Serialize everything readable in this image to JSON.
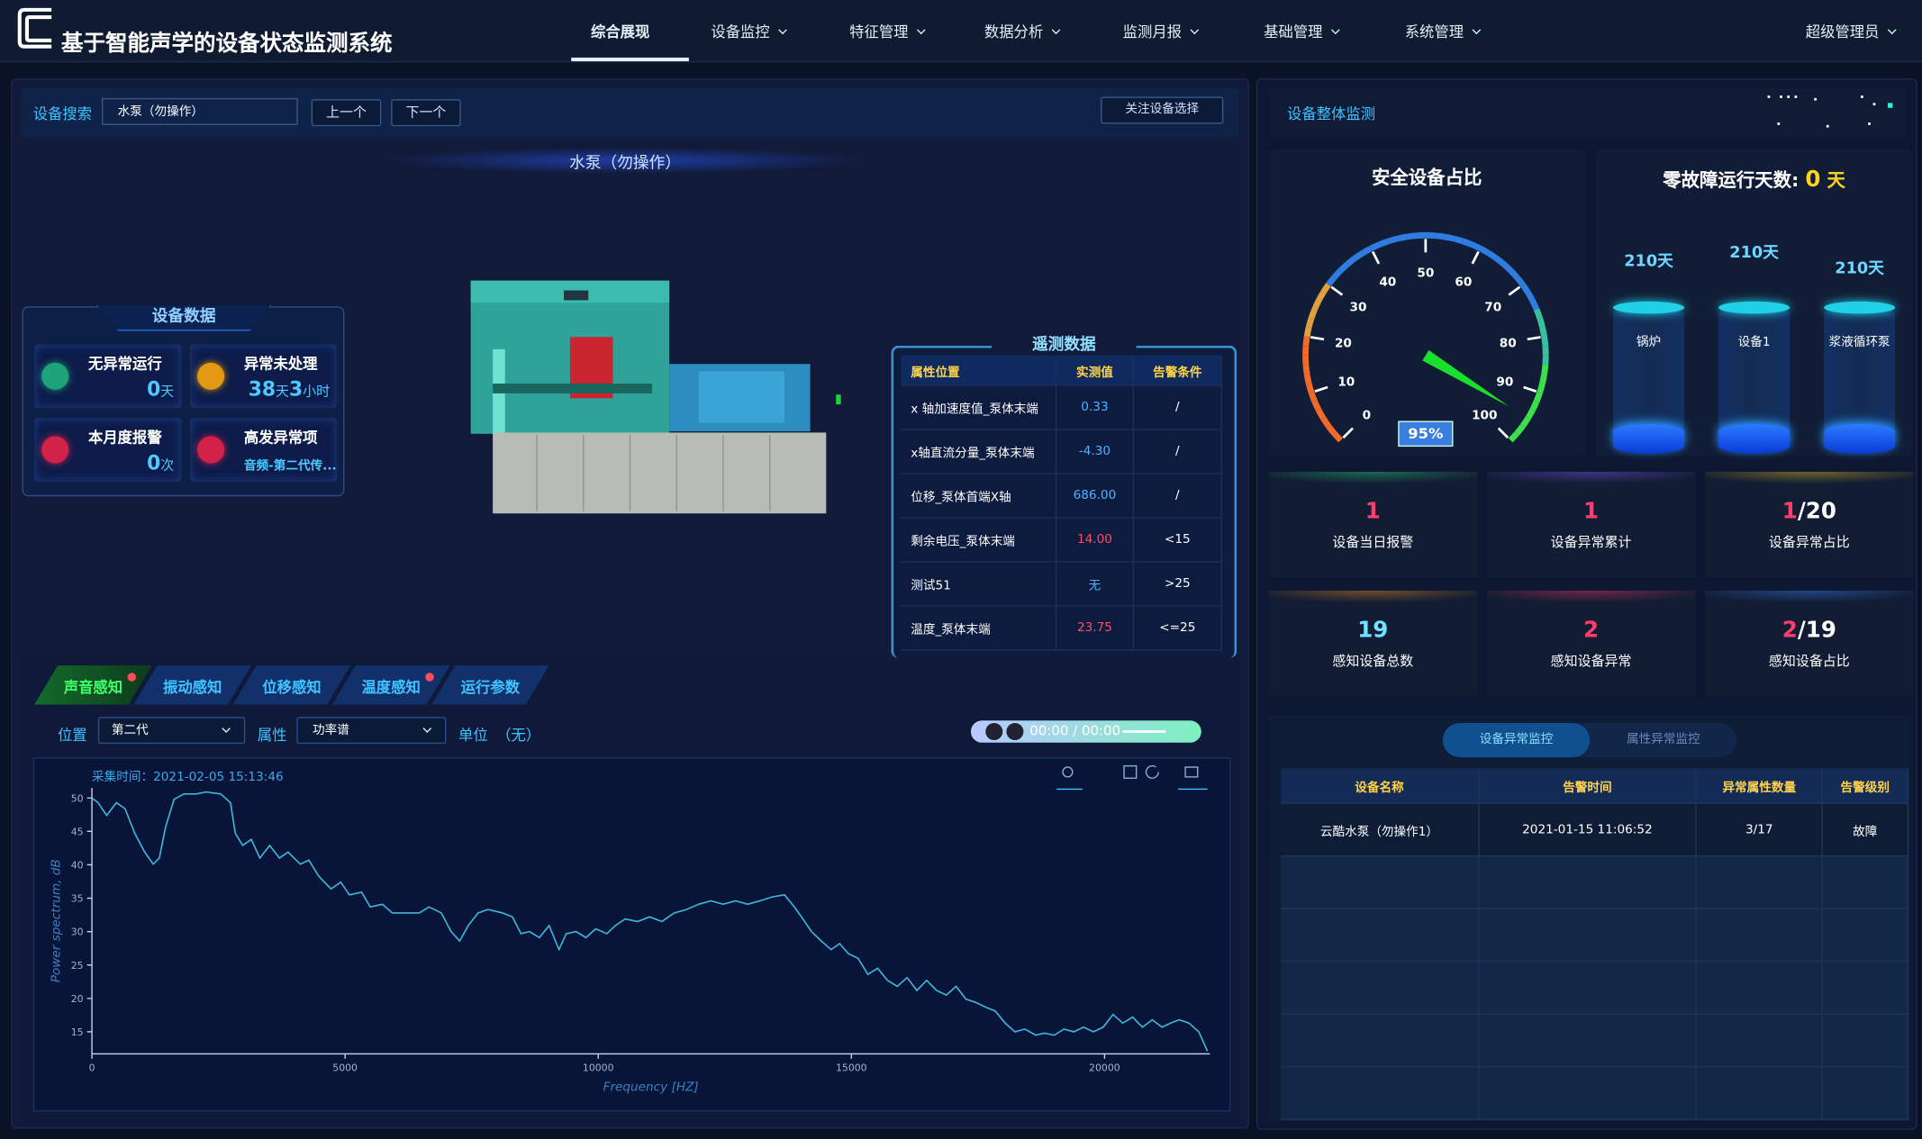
{
  "header": {
    "title": "基于智能声学的设备状态监测系统",
    "nav": [
      "综合展现",
      "设备监控",
      "特征管理",
      "数据分析",
      "监测月报",
      "基础管理",
      "系统管理"
    ],
    "active": 0,
    "user": "超级管理员"
  },
  "search": {
    "label": "设备搜索",
    "value": "水泵（勿操作）",
    "prev": "上一个",
    "next": "下一个",
    "follow": "关注设备选择"
  },
  "device_title": "水泵（勿操作）",
  "device_data": {
    "title": "设备数据",
    "items": [
      {
        "label": "无异常运行",
        "value": 0,
        "unit": "天"
      },
      {
        "label": "异常未处理",
        "value": 38,
        "unit": "天",
        "value2": 3,
        "unit2": "小时"
      },
      {
        "label": "本月度报警",
        "value": 0,
        "unit": "次"
      },
      {
        "label": "高发异常项",
        "value": "音频-第二代传..."
      }
    ]
  },
  "telemetry": {
    "title": "遥测数据",
    "columns": [
      "属性位置",
      "实测值",
      "告警条件"
    ],
    "rows": [
      {
        "name": "x 轴加速度值_泵体末端",
        "value": "0.33",
        "condition": "/",
        "alarm": false
      },
      {
        "name": "x轴直流分量_泵体末端",
        "value": "-4.30",
        "condition": "/",
        "alarm": false
      },
      {
        "name": "位移_泵体首端X轴",
        "value": "686.00",
        "condition": "/",
        "alarm": false
      },
      {
        "name": "剩余电压_泵体末端",
        "value": "14.00",
        "condition": "<15",
        "alarm": true
      },
      {
        "name": "测试51",
        "value": "无",
        "condition": ">25",
        "alarm": false
      },
      {
        "name": "温度_泵体末端",
        "value": "23.75",
        "condition": "<=25",
        "alarm": true
      }
    ]
  },
  "tabs": {
    "items": [
      "声音感知",
      "振动感知",
      "位移感知",
      "温度感知",
      "运行参数"
    ],
    "active": 0,
    "badges": [
      true,
      false,
      false,
      true,
      false
    ]
  },
  "filters": {
    "position_label": "位置",
    "position": "第二代",
    "attribute_label": "属性",
    "attribute": "功率谱",
    "unit_label": "单位",
    "unit": "（无）"
  },
  "player": {
    "time": "00:00 / 00:00"
  },
  "spectrum_chart": {
    "type": "line",
    "title": "采集时间：2021-02-05 15:13:46",
    "x_label": "Frequency [HZ]",
    "y_label": "Power spectrum, dB",
    "color": "#3fb6d8",
    "x": [
      0,
      121,
      290,
      484,
      654,
      847,
      1041,
      1211,
      1332,
      1453,
      1622,
      1816,
      2058,
      2252,
      2542,
      2736,
      2833,
      2978,
      3147,
      3317,
      3510,
      3704,
      3874,
      4116,
      4285,
      4479,
      4721,
      4915,
      5084,
      5326,
      5496,
      5738,
      5931,
      6174,
      6464,
      6658,
      6900,
      7094,
      7263,
      7432,
      7626,
      7820,
      8110,
      8304,
      8474,
      8643,
      8837,
      9030,
      9224,
      9369,
      9563,
      9757,
      9950,
      10168,
      10337,
      10531,
      10773,
      11016,
      11258,
      11500,
      11742,
      11984,
      12226,
      12468,
      12710,
      12952,
      13194,
      13437,
      13679,
      13872,
      14042,
      14211,
      14405,
      14599,
      14768,
      14938,
      15131,
      15325,
      15519,
      15712,
      15906,
      16100,
      16293,
      16487,
      16681,
      16874,
      17068,
      17262,
      17455,
      17649,
      17843,
      18036,
      18230,
      18424,
      18642,
      18811,
      19005,
      19199,
      19392,
      19586,
      19780,
      19973,
      20167,
      20361,
      20554,
      20748,
      20942,
      21135,
      21305,
      21474,
      21668,
      21862,
      22031
    ],
    "values": [
      50.0,
      49.3,
      47.4,
      49.3,
      48.4,
      44.7,
      41.9,
      40.1,
      41.0,
      45.6,
      49.8,
      50.6,
      50.6,
      50.9,
      50.6,
      49.3,
      44.7,
      42.9,
      43.8,
      41.0,
      42.9,
      41.0,
      41.9,
      40.1,
      40.7,
      38.3,
      36.4,
      37.4,
      35.5,
      35.9,
      33.7,
      34.1,
      32.8,
      32.8,
      32.8,
      33.7,
      32.8,
      30.0,
      28.6,
      30.9,
      32.8,
      33.3,
      32.8,
      32.2,
      29.7,
      30.0,
      29.1,
      30.9,
      27.3,
      29.7,
      30.0,
      29.1,
      30.4,
      29.7,
      30.9,
      31.9,
      31.5,
      32.2,
      31.5,
      32.8,
      33.3,
      34.1,
      34.6,
      34.1,
      34.6,
      34.1,
      34.6,
      35.2,
      35.5,
      33.7,
      31.9,
      30.0,
      28.6,
      27.3,
      28.2,
      26.7,
      26.0,
      23.6,
      24.5,
      22.7,
      21.8,
      23.1,
      21.2,
      22.7,
      21.2,
      20.5,
      21.8,
      19.9,
      19.4,
      18.7,
      18.1,
      16.3,
      15.0,
      15.4,
      14.5,
      14.8,
      14.5,
      15.4,
      15.0,
      15.7,
      15.0,
      15.7,
      17.6,
      16.3,
      17.2,
      15.7,
      16.8,
      15.7,
      16.3,
      16.8,
      16.3,
      15.0,
      12.1
    ],
    "xlim": [
      0,
      22080
    ],
    "ylim": [
      11.7,
      51.5
    ],
    "xticks": [
      0,
      5000,
      10000,
      15000,
      20000
    ],
    "yticks": [
      15,
      20,
      25,
      30,
      35,
      40,
      45,
      50
    ]
  },
  "overall": {
    "title": "设备整体监测"
  },
  "gauge": {
    "title": "安全设备占比",
    "value": 95,
    "value_label": "95%",
    "min": 0,
    "max": 100,
    "ticks": [
      0,
      10,
      20,
      30,
      40,
      50,
      60,
      70,
      80,
      90,
      100
    ]
  },
  "zero_fault": {
    "label": "零故障运行天数:",
    "value": 0,
    "unit": "天",
    "tanks": [
      {
        "name": "锅炉",
        "days": "210天"
      },
      {
        "name": "设备1",
        "days": "210天"
      },
      {
        "name": "浆液循环泵",
        "days": "210天"
      }
    ]
  },
  "stats": [
    {
      "value": "1",
      "label": "设备当日报警"
    },
    {
      "value": "1",
      "label": "设备异常累计"
    },
    {
      "value": "1",
      "suffix": "/20",
      "label": "设备异常占比"
    },
    {
      "value": "19",
      "label": "感知设备总数"
    },
    {
      "value": "2",
      "label": "感知设备异常"
    },
    {
      "value": "2",
      "suffix": "/19",
      "label": "感知设备占比"
    }
  ],
  "alarm_table": {
    "tabs": [
      "设备异常监控",
      "属性异常监控"
    ],
    "columns": [
      "设备名称",
      "告警时间",
      "异常属性数量",
      "告警级别"
    ],
    "rows": [
      [
        "云酷水泵（勿操作1）",
        "2021-01-15 11:06:52",
        "3/17",
        "故障"
      ]
    ]
  }
}
